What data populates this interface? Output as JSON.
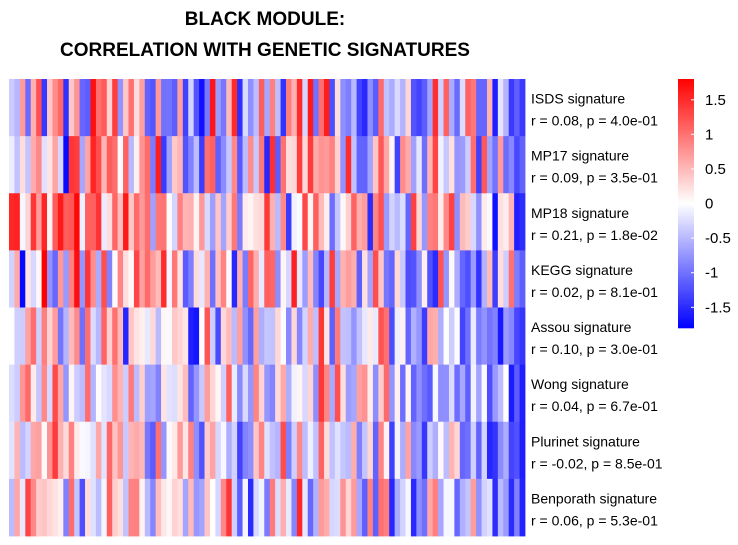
{
  "title_line1": "BLACK MODULE:",
  "title_line2": "CORRELATION WITH GENETIC SIGNATURES",
  "chart_data": {
    "type": "heatmap",
    "rows": [
      {
        "name": "ISDS signature",
        "stat": "r = 0.08, p = 4.0e-01"
      },
      {
        "name": "MP17 signature",
        "stat": "r = 0.09, p = 3.5e-01"
      },
      {
        "name": "MP18 signature",
        "stat": "r = 0.21, p = 1.8e-02"
      },
      {
        "name": "KEGG signature",
        "stat": "r = 0.02, p = 8.1e-01"
      },
      {
        "name": "Assou signature",
        "stat": "r = 0.10, p = 3.0e-01"
      },
      {
        "name": "Wong signature",
        "stat": "r = 0.04, p = 6.7e-01"
      },
      {
        "name": "Plurinet signature",
        "stat": "r = -0.02, p = 8.5e-01"
      },
      {
        "name": "Benporath signature",
        "stat": "r = 0.06, p = 5.3e-01"
      }
    ],
    "n_columns": 95,
    "color_range": [
      -1.8,
      1.8
    ],
    "colors": {
      "low": "#0000ff",
      "mid": "#ffffff",
      "high": "#ff0000"
    },
    "legend": {
      "ticks": [
        1.5,
        1,
        0.5,
        0,
        -0.5,
        -1,
        -1.5
      ],
      "tick_labels": [
        "1.5",
        "1",
        "0.5",
        "0",
        "-0.5",
        "-1",
        "-1.5"
      ]
    },
    "values": [
      [
        -0.37,
        -0.51,
        0.71,
        -1.05,
        0.55,
        1.23,
        -1.4,
        0.39,
        0.82,
        1.07,
        -1.46,
        0.39,
        0.77,
        -1.07,
        -1.14,
        1.7,
        1.0,
        1.17,
        0.31,
        1.37,
        -0.76,
        0.4,
        1.0,
        0.25,
        0.68,
        -1.11,
        -1.2,
        0.73,
        -1.0,
        -0.99,
        -1.14,
        0.68,
        -1.34,
        -0.32,
        -1.22,
        -1.68,
        -0.95,
        1.65,
        -0.7,
        -0.95,
        0.48,
        1.5,
        -1.47,
        -0.26,
        -0.79,
        -0.47,
        1.14,
        -0.63,
        0.9,
        -0.45,
        -1.44,
        0.92,
        0.55,
        1.5,
        -0.29,
        1.61,
        -1.0,
        1.02,
        1.6,
        -1.24,
        0.23,
        -0.8,
        -0.91,
        -0.5,
        -1.33,
        -1.52,
        -0.8,
        -1.16,
        1.05,
        -0.44,
        -0.59,
        -0.27,
        -0.54,
        0.29,
        -1.21,
        -1.32,
        -1.15,
        -0.66,
        1.48,
        -0.33,
        1.12,
        -0.6,
        -1.05,
        -0.25,
        1.1,
        0.96,
        -1.08,
        -1.09,
        0.54,
        -1.59,
        -0.19,
        -0.53,
        -1.39,
        -1.13,
        -1.39
      ],
      [
        -0.13,
        -0.43,
        0.24,
        -0.42,
        0.59,
        0.84,
        -0.21,
        0.2,
        0.64,
        -0.29,
        -1.74,
        1.43,
        1.37,
        -0.63,
        0.64,
        1.55,
        1.26,
        0.52,
        1.15,
        1.03,
        -0.03,
        1.12,
        -0.5,
        0.11,
        0.76,
        1.04,
        -0.93,
        1.59,
        -1.4,
        -0.67,
        0.38,
        0.52,
        -1.21,
        -0.88,
        -0.47,
        -1.38,
        1.02,
        1.12,
        -1.13,
        -0.81,
        -0.39,
        0.84,
        -1.17,
        -0.48,
        0.81,
        -0.39,
        0.95,
        -1.53,
        1.47,
        -1.16,
        1.0,
        0.24,
        0.29,
        1.37,
        0.28,
        1.38,
        0.61,
        0.76,
        0.73,
        0.89,
        0.32,
        -0.78,
        1.49,
        -0.44,
        -1.1,
        -1.11,
        -0.66,
        0.42,
        1.18,
        0.62,
        0.07,
        -1.34,
        0.81,
        0.61,
        -0.67,
        -0.18,
        -1.02,
        0.54,
        1.31,
        -0.09,
        -0.39,
        0.22,
        -0.75,
        -0.7,
        -0.36,
        1.03,
        -1.36,
        1.18,
        -0.66,
        -0.99,
        0.71,
        -1.04,
        -0.85,
        -1.29,
        -1.11
      ],
      [
        1.53,
        1.56,
        -0.06,
        0.3,
        1.42,
        0.69,
        1.54,
        0.09,
        1.16,
        1.62,
        1.15,
        1.19,
        1.75,
        -0.11,
        1.13,
        1.12,
        1.44,
        -0.14,
        0.24,
        1.08,
        0.47,
        1.63,
        0.4,
        1.05,
        0.73,
        1.03,
        -0.67,
        0.95,
        0.99,
        0.03,
        -0.3,
        0.89,
        0.52,
        0.56,
        0.09,
        0.72,
        -0.27,
        -0.68,
        0.41,
        -0.64,
        0.35,
        0.95,
        -0.94,
        0.14,
        0.08,
        0.23,
        0.27,
        1.4,
        0.55,
        -0.49,
        0.83,
        -1.39,
        -0.09,
        -0.03,
        1.3,
        0.09,
        1.14,
        0.49,
        0.12,
        -1.03,
        -0.41,
        0.06,
        0.33,
        1.11,
        0.57,
        0.7,
        -1.49,
        0.86,
        1.23,
        -0.71,
        -0.32,
        -0.48,
        -0.25,
        -1.08,
        1.35,
        0.29,
        -0.74,
        0.9,
        0.96,
        0.13,
        0.83,
        1.34,
        -0.8,
        0.48,
        0.37,
        -0.28,
        -0.77,
        0.14,
        -0.04,
        -1.68,
        0.22,
        0.14,
        0.52,
        -1.58,
        -1.48
      ],
      [
        -0.32,
        0.61,
        -1.75,
        0.19,
        -0.28,
        0.05,
        1.85,
        -0.76,
        -1.07,
        0.73,
        -0.72,
        0.9,
        1.7,
        -0.75,
        1.43,
        0.79,
        -0.59,
        1.24,
        -0.89,
        -0.03,
        0.87,
        0.23,
        0.05,
        1.31,
        0.68,
        1.05,
        0.7,
        0.49,
        1.5,
        -0.07,
        0.96,
        0.2,
        -1.16,
        -0.91,
        0.25,
        -0.17,
        0.56,
        -1.01,
        0.44,
        0.87,
        0.03,
        -1.51,
        0.55,
        -0.93,
        1.09,
        0.57,
        -0.16,
        1.13,
        1.07,
        -0.81,
        0.07,
        -0.29,
        1.57,
        -0.16,
        -0.69,
        0.48,
        -0.87,
        -1.3,
        -0.51,
        1.37,
        -0.63,
        0.55,
        0.7,
        0.58,
        -1.14,
        0.22,
        -0.65,
        1.26,
        0.4,
        -0.97,
        -1.08,
        0.28,
        -0.38,
        -1.25,
        -1.21,
        -0.79,
        0.11,
        -1.23,
        -1.5,
        1.21,
        -0.75,
        0.05,
        -0.58,
        -1.09,
        -1.24,
        -0.71,
        -1.44,
        -0.54,
        0.49,
        -1.37,
        0.24,
        -0.34,
        1.01,
        -0.92,
        -1.13
      ],
      [
        0.01,
        -0.34,
        -0.36,
        0.66,
        1.02,
        -0.34,
        0.91,
        0.31,
        0.7,
        -0.98,
        -0.52,
        0.48,
        0.81,
        -1.01,
        1.02,
        -0.26,
        -0.5,
        1.1,
        0.33,
        1.0,
        0.49,
        -1.54,
        0.41,
        0.2,
        0.11,
        -0.16,
        0.27,
        -0.49,
        0.06,
        -0.04,
        0.38,
        0.3,
        0.18,
        -1.58,
        -1.65,
        0.01,
        1.21,
        -0.35,
        -1.28,
        0.28,
        0.48,
        -0.49,
        0.68,
        -0.79,
        -1.07,
        0.68,
        -0.57,
        -0.4,
        -0.43,
        0.28,
        -0.02,
        -0.84,
        0.29,
        -0.86,
        -0.31,
        0.59,
        -0.45,
        1.42,
        0.19,
        -1.12,
        0.94,
        -0.43,
        -0.45,
        -0.75,
        -0.44,
        -0.16,
        0.15,
        -0.15,
        1.22,
        1.01,
        -1.27,
        -0.11,
        0.09,
        -1.08,
        -0.56,
        -0.74,
        -1.38,
        0.62,
        0.57,
        -0.57,
        0.02,
        -0.36,
        -0.03,
        -1.32,
        -1.01,
        -0.14,
        -0.93,
        -0.77,
        -0.99,
        -0.88,
        -1.62,
        -0.72,
        -0.85,
        -1.3,
        -1.42
      ],
      [
        -0.25,
        -0.36,
        0.74,
        1.06,
        0.14,
        -0.41,
        0.83,
        -0.28,
        1.28,
        0.63,
        -0.75,
        0.08,
        -0.36,
        -0.47,
        1.03,
        -0.54,
        0.02,
        -0.19,
        -0.27,
        0.79,
        0.53,
        -0.35,
        0.93,
        -0.47,
        0.34,
        -0.68,
        -0.64,
        -0.88,
        0.19,
        -0.2,
        -0.24,
        0.19,
        0.47,
        -1.11,
        -0.75,
        -0.39,
        0.69,
        0.29,
        0.07,
        -0.33,
        1.12,
        -0.14,
        -0.84,
        -0.27,
        -0.74,
        0.87,
        0.31,
        -0.74,
        -0.87,
        0.25,
        0.61,
        -0.57,
        -0.09,
        0.07,
        -0.28,
        0.3,
        -0.8,
        1.41,
        0.86,
        -0.61,
        1.24,
        0.24,
        -0.7,
        -0.63,
        0.67,
        0.77,
        0.14,
        -0.81,
        0.37,
        1.06,
        -0.76,
        0.1,
        -1.03,
        0.08,
        -1.1,
        -0.79,
        -1.03,
        -1.17,
        -0.06,
        -0.8,
        -0.79,
        -0.26,
        -1.04,
        -0.63,
        -1.13,
        -0.09,
        -0.64,
        -0.04,
        -1.25,
        -0.72,
        -0.46,
        0.01,
        -1.61,
        -1.16,
        -1.58
      ],
      [
        -0.2,
        0.53,
        -0.48,
        -0.31,
        0.62,
        0.67,
        0.04,
        0.76,
        1.39,
        0.56,
        0.27,
        0.89,
        0.15,
        -0.04,
        -0.07,
        -0.22,
        0.62,
        -0.2,
        1.08,
        0.44,
        0.74,
        -0.38,
        0.54,
        0.6,
        0.5,
        -0.95,
        -1.16,
        1.01,
        -0.75,
        0.04,
        0.16,
        0.71,
        0.18,
        0.89,
        -0.8,
        -1.22,
        0.35,
        0.64,
        -0.29,
        -0.06,
        -0.58,
        -0.32,
        -1.34,
        -0.88,
        -0.8,
        0.41,
        0.86,
        -0.22,
        -0.44,
        -0.53,
        1.26,
        -0.92,
        -0.34,
        0.83,
        -0.46,
        -0.11,
        -0.44,
        1.11,
        0.25,
        -0.44,
        -0.22,
        -0.41,
        -0.48,
        0.57,
        -0.91,
        -0.42,
        0.3,
        -1.11,
        0.86,
        0.09,
        -1.35,
        -0.07,
        -0.58,
        0.66,
        -0.84,
        -0.71,
        -1.42,
        -0.35,
        -0.57,
        0.05,
        -0.47,
        0.53,
        0.29,
        -1.08,
        -1.01,
        -0.33,
        -1.11,
        -0.32,
        -1.53,
        -1.43,
        -0.82,
        -0.58,
        -1.32,
        -1.23,
        -1.59
      ],
      [
        -0.48,
        0.63,
        -0.16,
        1.32,
        0.83,
        0.36,
        0.41,
        0.29,
        0.2,
        0.11,
        -0.89,
        1.04,
        -0.42,
        -1.24,
        0.24,
        -0.22,
        -0.47,
        -0.07,
        1.12,
        0.35,
        0.23,
        -0.43,
        0.88,
        0.9,
        0.09,
        -0.49,
        -0.86,
        0.47,
        0.17,
        0.06,
        0.32,
        0.23,
        -0.64,
        0.48,
        -0.73,
        -0.64,
        0.42,
        0.01,
        -0.29,
        0.85,
        1.43,
        -0.34,
        -1.15,
        -0.08,
        -1.5,
        -0.27,
        -0.08,
        -0.93,
        0.94,
        -0.25,
        0.57,
        -0.15,
        -0.86,
        1.51,
        -0.18,
        -1.07,
        -0.55,
        0.71,
        0.59,
        -0.29,
        -0.25,
        0.77,
        0.3,
        0.71,
        -0.62,
        -1.14,
        0.88,
        -1.13,
        1.0,
        0.91,
        -1.53,
        -0.6,
        -0.31,
        -0.06,
        -1.51,
        -0.81,
        -1.02,
        0.63,
        0.9,
        -0.62,
        -0.06,
        -0.06,
        -1.07,
        -0.56,
        -0.42,
        0.7,
        -0.78,
        -0.32,
        -0.22,
        -1.49,
        -0.49,
        -0.71,
        -1.49,
        -0.89,
        -1.55
      ]
    ]
  }
}
